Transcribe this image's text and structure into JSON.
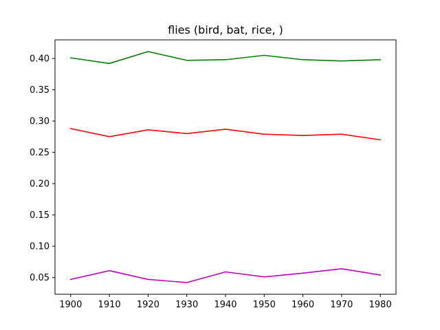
{
  "chart_data": {
    "type": "line",
    "title": "flies (bird, bat, rice, )",
    "xlabel": "",
    "ylabel": "",
    "x": [
      1900,
      1910,
      1920,
      1930,
      1940,
      1950,
      1960,
      1970,
      1980
    ],
    "xlim": [
      1895.95,
      1984.05
    ],
    "ylim": [
      0.0233,
      0.4297
    ],
    "xticks": [
      1900,
      1910,
      1920,
      1930,
      1940,
      1950,
      1960,
      1970,
      1980
    ],
    "xtick_labels": [
      "1900",
      "1910",
      "1920",
      "1930",
      "1940",
      "1950",
      "1960",
      "1970",
      "1980"
    ],
    "yticks": [
      0.05,
      0.1,
      0.15,
      0.2,
      0.25,
      0.3,
      0.35,
      0.4
    ],
    "ytick_labels": [
      "0.05",
      "0.10",
      "0.15",
      "0.20",
      "0.25",
      "0.30",
      "0.35",
      "0.40"
    ],
    "grid": false,
    "legend": "none",
    "series": [
      {
        "color": "#008000",
        "values": [
          0.401,
          0.392,
          0.411,
          0.397,
          0.398,
          0.405,
          0.398,
          0.396,
          0.398
        ]
      },
      {
        "color": "#ff0000",
        "values": [
          0.288,
          0.275,
          0.286,
          0.28,
          0.287,
          0.279,
          0.277,
          0.279,
          0.27
        ]
      },
      {
        "color": "#bf00bf",
        "values": [
          0.047,
          0.061,
          0.047,
          0.042,
          0.059,
          0.051,
          0.057,
          0.064,
          0.054
        ]
      }
    ]
  }
}
